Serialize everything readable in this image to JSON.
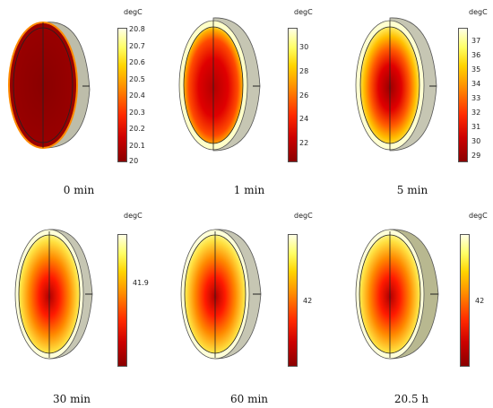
{
  "panels": [
    {
      "caption": "0 min",
      "unit": "degC",
      "ticks": [
        "20.8",
        "20.7",
        "20.6",
        "20.5",
        "20.4",
        "20.3",
        "20.2",
        "20.1",
        "20"
      ],
      "uniform": true
    },
    {
      "caption": "1 min",
      "unit": "degC",
      "ticks": [
        "30",
        "28",
        "26",
        "24",
        "22"
      ]
    },
    {
      "caption": "5 min",
      "unit": "degC",
      "ticks": [
        "37",
        "36",
        "35",
        "34",
        "33",
        "32",
        "31",
        "30",
        "29"
      ]
    },
    {
      "caption": "30 min",
      "unit": "degC",
      "ticks": [
        "41.9"
      ]
    },
    {
      "caption": "60 min",
      "unit": "degC",
      "ticks": [
        "42"
      ]
    },
    {
      "caption": "20.5 h",
      "unit": "degC",
      "ticks": [
        "42"
      ]
    }
  ],
  "colors": {
    "hot": "#8a0000",
    "warm": "#ff2a00",
    "cool": "#ffffe6"
  }
}
